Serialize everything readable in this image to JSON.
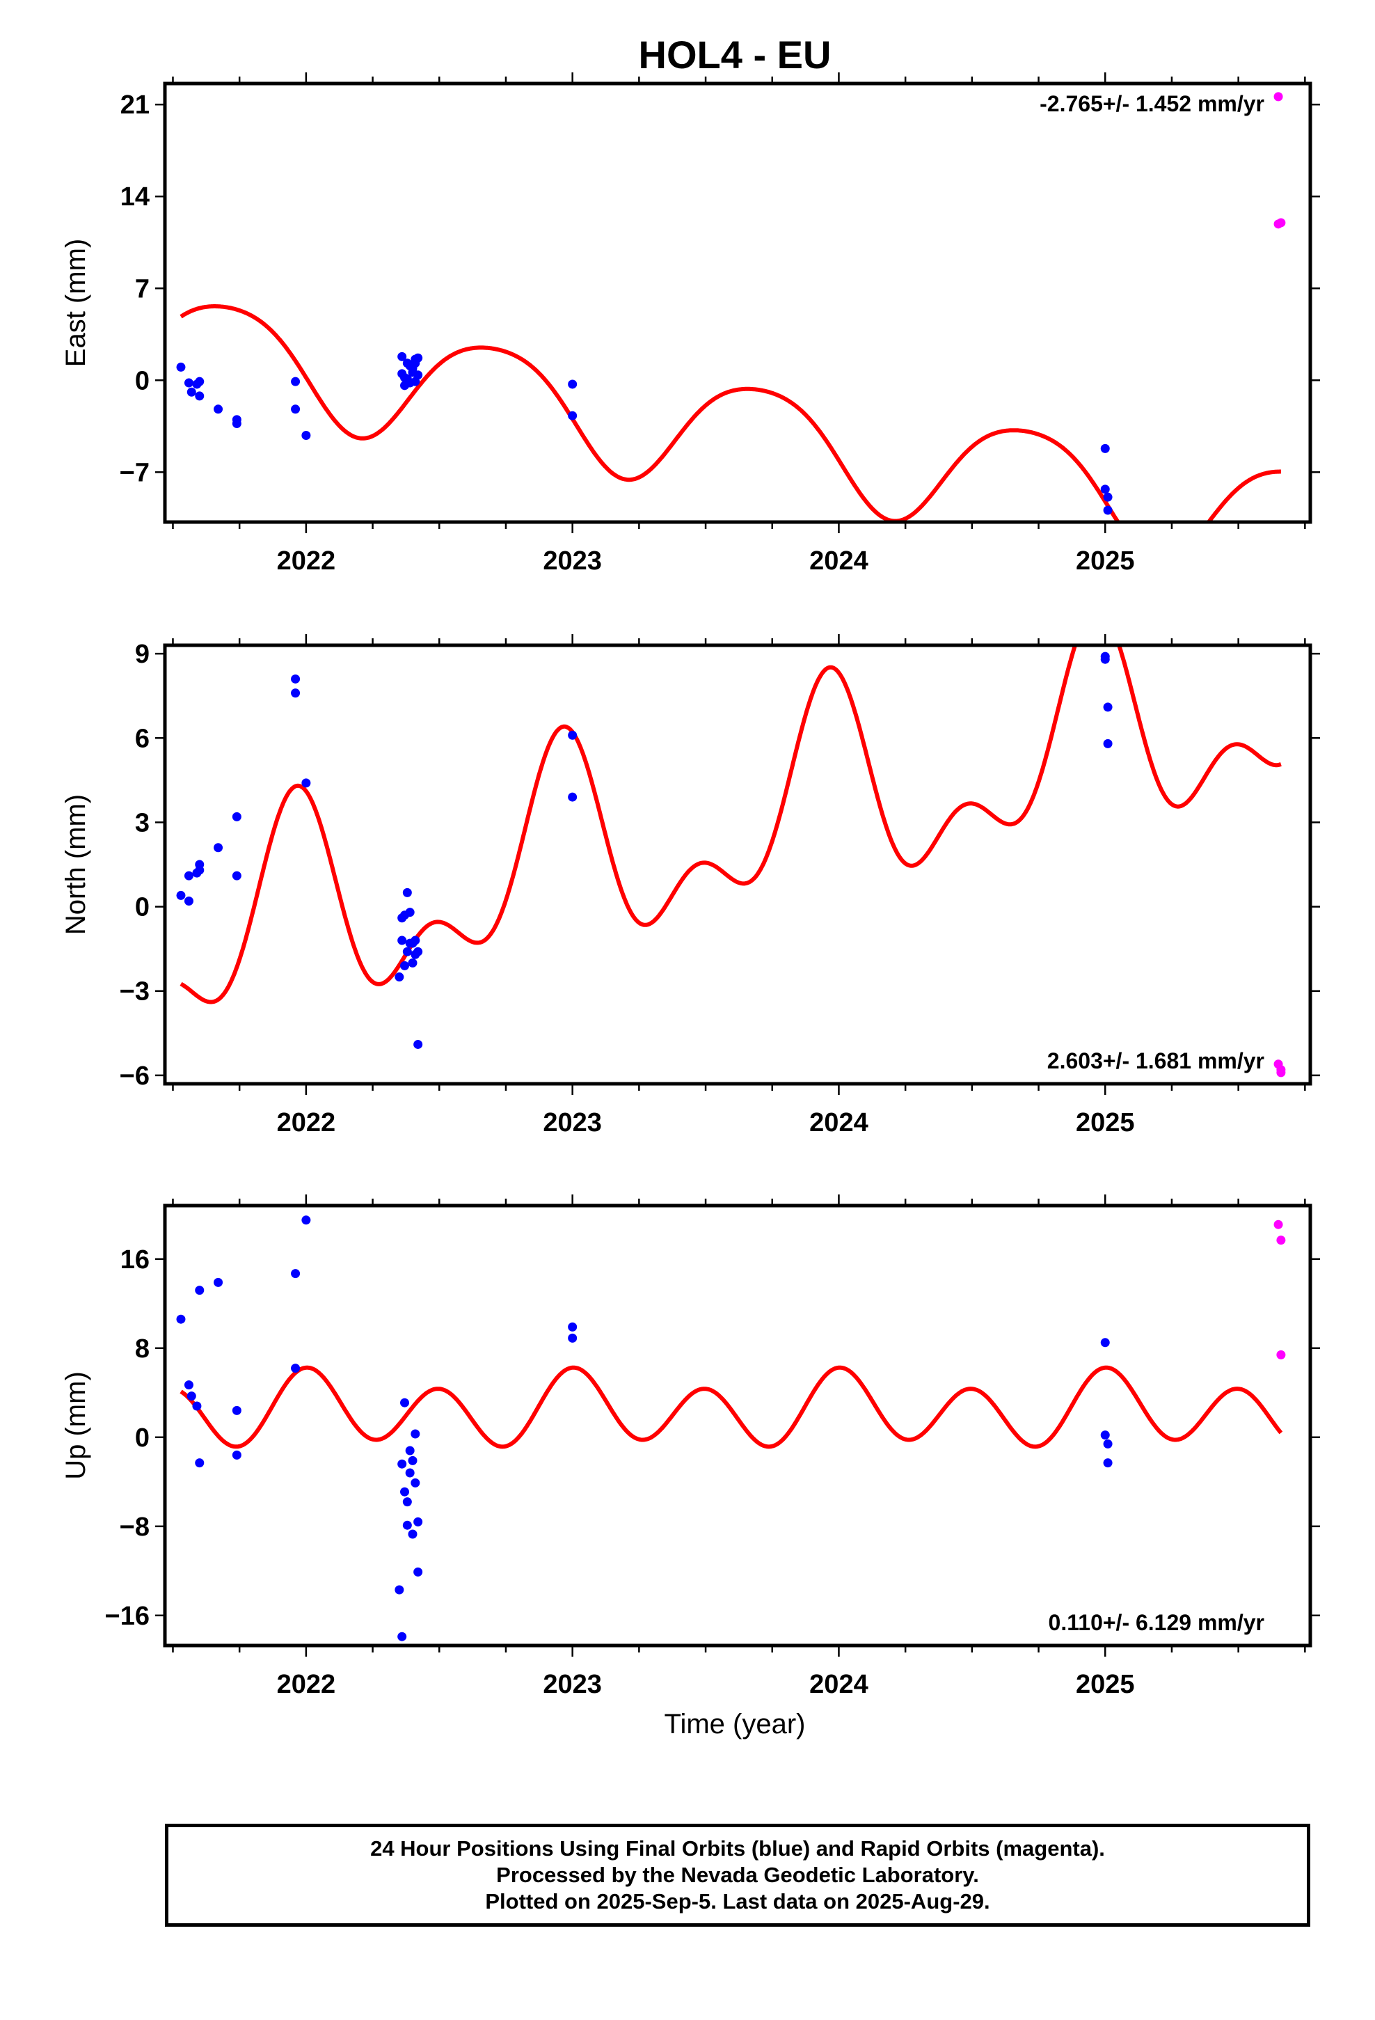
{
  "chart_data": {
    "type": "scatter",
    "title": "HOL4 - EU",
    "xlabel": "Time (year)",
    "xlim": [
      2021.47,
      2025.77
    ],
    "x_ticks": [
      2022,
      2023,
      2024,
      2025
    ],
    "x_tick_labels": [
      "2022",
      "2023",
      "2024",
      "2025"
    ],
    "x_minor_tick_step": 0.25,
    "grid": false,
    "legend": "none",
    "colors": {
      "final": "#0000ff",
      "rapid": "#ff00ff",
      "model": "#ff0000"
    },
    "panels": [
      {
        "name": "east",
        "ylabel": "East (mm)",
        "ylim": [
          -10.8,
          22.6
        ],
        "y_ticks": [
          21,
          14,
          7,
          0,
          -7
        ],
        "rate_label": "-2.765+/- 1.452 mm/yr",
        "rate_position": "top-right",
        "model": {
          "trend": [
            2.5,
            -10.5
          ],
          "annual_amp": 4.2,
          "annual_peak": 2021.7,
          "semi_amp": 0.6,
          "semi_peak": 2021.95
        },
        "final_points": [
          [
            2021.53,
            1.0
          ],
          [
            2021.56,
            -0.2
          ],
          [
            2021.57,
            -0.9
          ],
          [
            2021.59,
            -0.3
          ],
          [
            2021.6,
            -1.2
          ],
          [
            2021.6,
            -0.1
          ],
          [
            2021.67,
            -2.2
          ],
          [
            2021.74,
            -3.0
          ],
          [
            2021.74,
            -3.3
          ],
          [
            2021.96,
            -0.1
          ],
          [
            2021.96,
            -2.2
          ],
          [
            2022.0,
            -4.2
          ],
          [
            2022.36,
            1.8
          ],
          [
            2022.36,
            0.5
          ],
          [
            2022.37,
            0.2
          ],
          [
            2022.37,
            -0.4
          ],
          [
            2022.38,
            1.3
          ],
          [
            2022.38,
            0.1
          ],
          [
            2022.39,
            -0.2
          ],
          [
            2022.39,
            1.1
          ],
          [
            2022.4,
            0.6
          ],
          [
            2022.4,
            0.9
          ],
          [
            2022.41,
            1.6
          ],
          [
            2022.41,
            1.3
          ],
          [
            2022.41,
            -0.1
          ],
          [
            2022.42,
            0.4
          ],
          [
            2022.42,
            1.7
          ],
          [
            2023.0,
            -0.3
          ],
          [
            2023.0,
            -2.7
          ],
          [
            2025.0,
            -5.2
          ],
          [
            2025.0,
            -8.3
          ],
          [
            2025.01,
            -8.9
          ],
          [
            2025.01,
            -9.9
          ]
        ],
        "rapid_points": [
          [
            2025.65,
            21.6
          ],
          [
            2025.65,
            11.9
          ],
          [
            2025.66,
            12.0
          ]
        ]
      },
      {
        "name": "north",
        "ylabel": "North (mm)",
        "ylim": [
          -6.3,
          9.3
        ],
        "y_ticks": [
          9,
          6,
          3,
          0,
          -3,
          -6
        ],
        "rate_label": "2.603+/- 1.681 mm/yr",
        "rate_position": "bottom-right",
        "model": {
          "trend": [
            -1.5,
            7.2
          ],
          "annual_amp": 3.0,
          "annual_peak": 2021.95,
          "semi_amp": 1.9,
          "semi_peak": 2021.97
        },
        "final_points": [
          [
            2021.53,
            0.4
          ],
          [
            2021.56,
            0.2
          ],
          [
            2021.56,
            1.1
          ],
          [
            2021.59,
            1.2
          ],
          [
            2021.6,
            1.5
          ],
          [
            2021.6,
            1.3
          ],
          [
            2021.67,
            2.1
          ],
          [
            2021.74,
            3.2
          ],
          [
            2021.74,
            1.1
          ],
          [
            2021.96,
            8.1
          ],
          [
            2021.96,
            7.6
          ],
          [
            2022.0,
            4.4
          ],
          [
            2022.35,
            -2.5
          ],
          [
            2022.36,
            -0.4
          ],
          [
            2022.36,
            -1.2
          ],
          [
            2022.37,
            -0.3
          ],
          [
            2022.37,
            -2.1
          ],
          [
            2022.38,
            -1.6
          ],
          [
            2022.38,
            0.5
          ],
          [
            2022.39,
            -0.2
          ],
          [
            2022.39,
            -1.3
          ],
          [
            2022.4,
            -2.0
          ],
          [
            2022.4,
            -1.3
          ],
          [
            2022.41,
            -1.2
          ],
          [
            2022.41,
            -1.7
          ],
          [
            2022.42,
            -1.6
          ],
          [
            2022.42,
            -4.9
          ],
          [
            2023.0,
            6.1
          ],
          [
            2023.0,
            3.9
          ],
          [
            2025.0,
            8.9
          ],
          [
            2025.0,
            8.8
          ],
          [
            2025.01,
            7.1
          ],
          [
            2025.01,
            5.8
          ]
        ],
        "rapid_points": [
          [
            2025.65,
            -5.6
          ],
          [
            2025.66,
            -5.8
          ],
          [
            2025.66,
            -5.9
          ]
        ]
      },
      {
        "name": "up",
        "ylabel": "Up (mm)",
        "xlabel": "Time (year)",
        "ylim": [
          -18.7,
          20.8
        ],
        "y_ticks": [
          16,
          8,
          0,
          -8,
          -16
        ],
        "rate_label": "0.110+/- 6.129 mm/yr",
        "rate_position": "bottom-right",
        "model": {
          "trend": [
            2.4,
            2.4
          ],
          "annual_amp": 1.0,
          "annual_peak": 2022.05,
          "semi_amp": 2.9,
          "semi_peak": 2022.0
        },
        "final_points": [
          [
            2021.53,
            10.6
          ],
          [
            2021.56,
            4.7
          ],
          [
            2021.57,
            3.7
          ],
          [
            2021.59,
            2.8
          ],
          [
            2021.6,
            13.2
          ],
          [
            2021.6,
            -2.3
          ],
          [
            2021.67,
            13.9
          ],
          [
            2021.74,
            2.4
          ],
          [
            2021.74,
            -1.6
          ],
          [
            2021.96,
            14.7
          ],
          [
            2021.96,
            6.2
          ],
          [
            2022.0,
            19.5
          ],
          [
            2022.35,
            -13.7
          ],
          [
            2022.36,
            -2.4
          ],
          [
            2022.36,
            -17.9
          ],
          [
            2022.37,
            -4.9
          ],
          [
            2022.37,
            3.1
          ],
          [
            2022.38,
            -5.8
          ],
          [
            2022.38,
            -7.9
          ],
          [
            2022.39,
            -3.2
          ],
          [
            2022.39,
            -1.2
          ],
          [
            2022.4,
            -8.7
          ],
          [
            2022.4,
            -2.1
          ],
          [
            2022.41,
            0.3
          ],
          [
            2022.41,
            -4.1
          ],
          [
            2022.42,
            -7.6
          ],
          [
            2022.42,
            -12.1
          ],
          [
            2023.0,
            9.9
          ],
          [
            2023.0,
            8.9
          ],
          [
            2025.0,
            8.5
          ],
          [
            2025.0,
            0.2
          ],
          [
            2025.01,
            -0.6
          ],
          [
            2025.01,
            -2.3
          ]
        ],
        "rapid_points": [
          [
            2025.65,
            19.1
          ],
          [
            2025.66,
            17.7
          ],
          [
            2025.66,
            7.4
          ]
        ]
      }
    ]
  },
  "footer": {
    "line1": "24 Hour Positions Using Final Orbits (blue) and Rapid Orbits (magenta).",
    "line2": "Processed by the Nevada Geodetic Laboratory.",
    "line3": "Plotted on 2025-Sep-5. Last data on 2025-Aug-29."
  }
}
